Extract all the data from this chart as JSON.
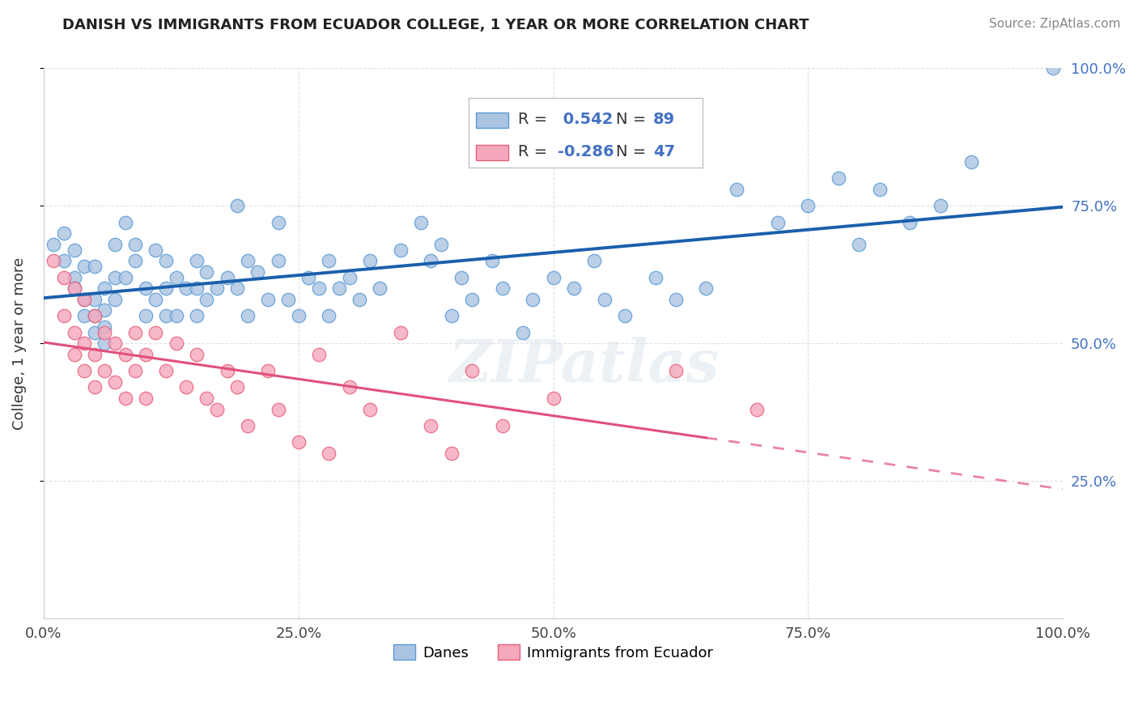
{
  "title": "DANISH VS IMMIGRANTS FROM ECUADOR COLLEGE, 1 YEAR OR MORE CORRELATION CHART",
  "source": "Source: ZipAtlas.com",
  "ylabel": "College, 1 year or more",
  "xlim": [
    0.0,
    1.0
  ],
  "ylim": [
    0.0,
    1.0
  ],
  "xticks": [
    0.0,
    0.25,
    0.5,
    0.75,
    1.0
  ],
  "yticks": [
    0.25,
    0.5,
    0.75,
    1.0
  ],
  "xticklabels": [
    "0.0%",
    "25.0%",
    "50.0%",
    "75.0%",
    "100.0%"
  ],
  "yticklabels": [
    "25.0%",
    "50.0%",
    "75.0%",
    "100.0%"
  ],
  "danes_color": "#aac4e2",
  "danes_edge_color": "#5b9bd5",
  "ecuador_color": "#f5a8bc",
  "ecuador_edge_color": "#e8607a",
  "trend_blue": "#1a5fac",
  "trend_pink": "#e0507a",
  "label_color_blue": "#4472c4",
  "label_color_black": "#222222",
  "R_danes": 0.542,
  "N_danes": 89,
  "R_ecuador": -0.286,
  "N_ecuador": 47,
  "legend_label_danes": "Danes",
  "legend_label_ecuador": "Immigrants from Ecuador",
  "danes_x": [
    0.01,
    0.02,
    0.02,
    0.03,
    0.03,
    0.03,
    0.04,
    0.04,
    0.04,
    0.05,
    0.05,
    0.05,
    0.05,
    0.06,
    0.06,
    0.06,
    0.06,
    0.07,
    0.07,
    0.07,
    0.08,
    0.08,
    0.09,
    0.09,
    0.1,
    0.1,
    0.11,
    0.11,
    0.12,
    0.12,
    0.12,
    0.13,
    0.13,
    0.14,
    0.15,
    0.15,
    0.15,
    0.16,
    0.16,
    0.17,
    0.18,
    0.19,
    0.19,
    0.2,
    0.2,
    0.21,
    0.22,
    0.23,
    0.23,
    0.24,
    0.25,
    0.26,
    0.27,
    0.28,
    0.28,
    0.29,
    0.3,
    0.31,
    0.32,
    0.33,
    0.35,
    0.37,
    0.38,
    0.39,
    0.4,
    0.41,
    0.42,
    0.44,
    0.45,
    0.47,
    0.48,
    0.5,
    0.52,
    0.54,
    0.55,
    0.57,
    0.6,
    0.62,
    0.65,
    0.68,
    0.72,
    0.75,
    0.78,
    0.8,
    0.82,
    0.85,
    0.88,
    0.91,
    0.99
  ],
  "danes_y": [
    0.68,
    0.7,
    0.65,
    0.67,
    0.62,
    0.6,
    0.64,
    0.58,
    0.55,
    0.64,
    0.58,
    0.55,
    0.52,
    0.6,
    0.56,
    0.53,
    0.5,
    0.68,
    0.62,
    0.58,
    0.72,
    0.62,
    0.68,
    0.65,
    0.6,
    0.55,
    0.67,
    0.58,
    0.65,
    0.6,
    0.55,
    0.62,
    0.55,
    0.6,
    0.65,
    0.6,
    0.55,
    0.63,
    0.58,
    0.6,
    0.62,
    0.75,
    0.6,
    0.65,
    0.55,
    0.63,
    0.58,
    0.72,
    0.65,
    0.58,
    0.55,
    0.62,
    0.6,
    0.65,
    0.55,
    0.6,
    0.62,
    0.58,
    0.65,
    0.6,
    0.67,
    0.72,
    0.65,
    0.68,
    0.55,
    0.62,
    0.58,
    0.65,
    0.6,
    0.52,
    0.58,
    0.62,
    0.6,
    0.65,
    0.58,
    0.55,
    0.62,
    0.58,
    0.6,
    0.78,
    0.72,
    0.75,
    0.8,
    0.68,
    0.78,
    0.72,
    0.75,
    0.83,
    1.0
  ],
  "ecuador_x": [
    0.01,
    0.02,
    0.02,
    0.03,
    0.03,
    0.03,
    0.04,
    0.04,
    0.04,
    0.05,
    0.05,
    0.05,
    0.06,
    0.06,
    0.07,
    0.07,
    0.08,
    0.08,
    0.09,
    0.09,
    0.1,
    0.1,
    0.11,
    0.12,
    0.13,
    0.14,
    0.15,
    0.16,
    0.17,
    0.18,
    0.19,
    0.2,
    0.22,
    0.23,
    0.25,
    0.27,
    0.28,
    0.3,
    0.32,
    0.35,
    0.38,
    0.4,
    0.42,
    0.45,
    0.5,
    0.62,
    0.7
  ],
  "ecuador_y": [
    0.65,
    0.62,
    0.55,
    0.6,
    0.52,
    0.48,
    0.58,
    0.5,
    0.45,
    0.55,
    0.48,
    0.42,
    0.52,
    0.45,
    0.5,
    0.43,
    0.48,
    0.4,
    0.52,
    0.45,
    0.48,
    0.4,
    0.52,
    0.45,
    0.5,
    0.42,
    0.48,
    0.4,
    0.38,
    0.45,
    0.42,
    0.35,
    0.45,
    0.38,
    0.32,
    0.48,
    0.3,
    0.42,
    0.38,
    0.52,
    0.35,
    0.3,
    0.45,
    0.35,
    0.4,
    0.45,
    0.38
  ],
  "watermark": "ZIPatlas",
  "grid_color": "#cccccc",
  "bg_color": "#ffffff"
}
